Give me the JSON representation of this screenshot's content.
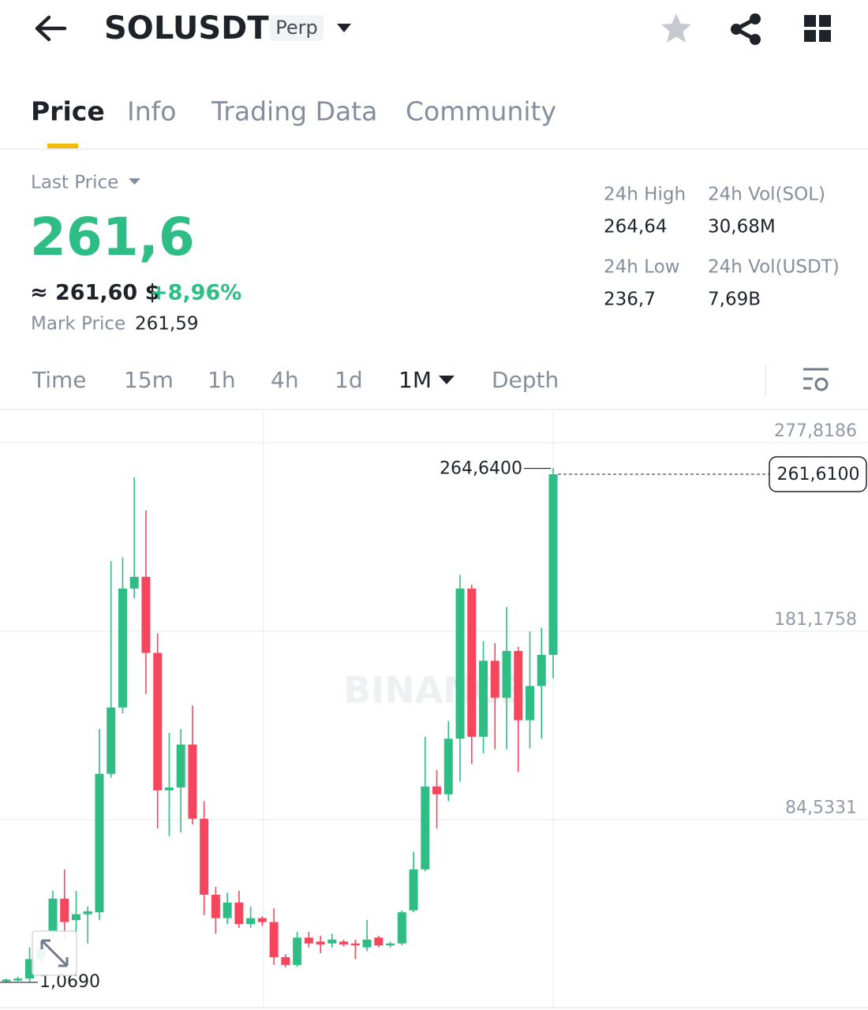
{
  "header": {
    "title": "SOLUSDT",
    "badge": "Perp"
  },
  "tabs": [
    "Price",
    "Info",
    "Trading Data",
    "Community"
  ],
  "summary": {
    "last_price_label": "Last Price",
    "last_price": "261,6",
    "approx": "≈ 261,60 $",
    "change": "+8,96%",
    "mark_price_label": "Mark Price",
    "mark_price": "261,59"
  },
  "stats": [
    {
      "label": "24h High",
      "value": "264,64"
    },
    {
      "label": "24h Vol(SOL)",
      "value": "30,68M"
    },
    {
      "label": "24h Low",
      "value": "236,7"
    },
    {
      "label": "24h Vol(USDT)",
      "value": "7,69B"
    }
  ],
  "intervals": [
    "Time",
    "15m",
    "1h",
    "4h",
    "1d",
    "1M",
    "Depth"
  ],
  "chart_data": {
    "type": "candlestick",
    "watermark": "BINANCE",
    "up_color": "#2ebd85",
    "down_color": "#f6465d",
    "open": [
      1.5,
      2,
      3,
      13,
      27,
      44,
      33,
      36,
      37,
      108,
      142,
      203,
      209,
      170,
      99.5,
      101,
      123,
      85,
      46,
      34,
      42,
      31,
      34,
      32,
      14,
      10,
      24,
      22,
      21,
      22,
      21,
      19,
      24,
      20,
      21,
      38,
      59,
      101.5,
      97.5,
      126,
      203,
      127,
      166,
      147,
      171,
      135.5,
      153,
      169
    ],
    "high": [
      3,
      4,
      19,
      23,
      48,
      59,
      48,
      40,
      131,
      217,
      219,
      260,
      243,
      180,
      129,
      131,
      143,
      94,
      50,
      47,
      48,
      40,
      35,
      39,
      15.5,
      27,
      27,
      25,
      26,
      23,
      23,
      33,
      25,
      22,
      38,
      68,
      127,
      110,
      135,
      210,
      205,
      176,
      175,
      193.5,
      173,
      181,
      183,
      264.64
    ],
    "low": [
      1.069,
      1.5,
      1.1,
      11,
      23,
      23,
      27,
      21,
      33,
      106,
      139,
      198,
      149,
      80,
      76,
      78,
      82,
      35.5,
      26,
      31,
      29,
      29,
      30,
      10,
      8.8,
      9,
      19,
      16,
      19,
      19.5,
      13,
      17,
      19,
      19,
      20,
      37,
      58,
      80,
      94,
      104,
      113,
      118.5,
      120.5,
      120.5,
      109,
      121,
      126,
      157
    ],
    "close": [
      2.5,
      3,
      13,
      19,
      44,
      32,
      36,
      37.5,
      108,
      142,
      203,
      209,
      170,
      99.5,
      101,
      123,
      85,
      46,
      34,
      42,
      31,
      34,
      32,
      14,
      10,
      24,
      21,
      20.5,
      23,
      20.5,
      20,
      23,
      20,
      21,
      37,
      59,
      101.5,
      97.5,
      126,
      203,
      127,
      166,
      147,
      171,
      135.5,
      153,
      169,
      261.61
    ],
    "ylim": [
      -12.3,
      294.8
    ],
    "yticks": [
      {
        "value": 277.8186,
        "label": "277,8186"
      },
      {
        "value": 181.1758,
        "label": "181,1758"
      },
      {
        "value": 84.5331,
        "label": "84,5331"
      }
    ],
    "high_label": {
      "value": 264.64,
      "label": "264,6400"
    },
    "low_label": {
      "value": 1.069,
      "label": "1,0690"
    },
    "last_label": {
      "value": 261.61,
      "label": "261,6100"
    }
  }
}
